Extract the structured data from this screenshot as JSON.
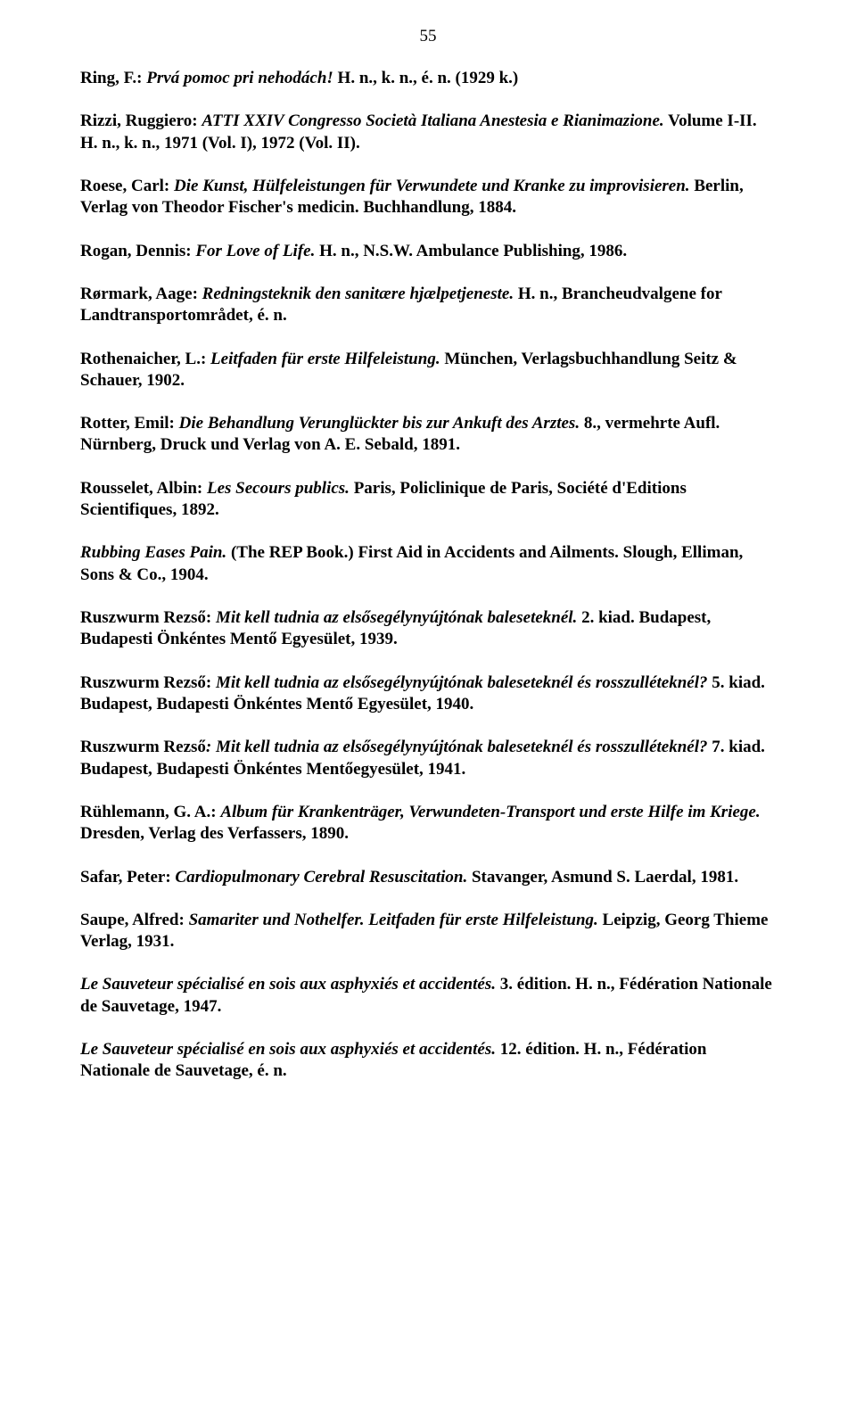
{
  "pageNumber": "55",
  "entries": [
    {
      "runs": [
        {
          "cls": "bold",
          "text": "Ring, F.: "
        },
        {
          "cls": "bold-italic",
          "text": "Prvá pomoc pri nehodách!"
        },
        {
          "cls": "bold",
          "text": " H. n., k. n., é. n. (1929 k.)"
        }
      ]
    },
    {
      "runs": [
        {
          "cls": "bold",
          "text": "Rizzi, Ruggiero: "
        },
        {
          "cls": "bold-italic",
          "text": "ATTI XXIV Congresso Società Italiana Anestesia e Rianimazione."
        },
        {
          "cls": "bold",
          "text": " Volume I-II. H. n., k. n., 1971 (Vol. I), 1972 (Vol. II)."
        }
      ]
    },
    {
      "runs": [
        {
          "cls": "bold",
          "text": "Roese, Carl: "
        },
        {
          "cls": "bold-italic",
          "text": "Die Kunst, Hülfeleistungen für Verwundete und Kranke zu improvisieren."
        },
        {
          "cls": "bold",
          "text": " Berlin, Verlag von Theodor Fischer's medicin. Buchhandlung, 1884."
        }
      ]
    },
    {
      "runs": [
        {
          "cls": "bold",
          "text": "Rogan, Dennis: "
        },
        {
          "cls": "bold-italic",
          "text": "For Love of Life."
        },
        {
          "cls": "bold",
          "text": " H. n., N.S.W. Ambulance Publishing, 1986."
        }
      ]
    },
    {
      "runs": [
        {
          "cls": "bold",
          "text": "Rørmark, Aage: "
        },
        {
          "cls": "bold-italic",
          "text": "Redningsteknik den sanitære hjælpetjeneste."
        },
        {
          "cls": "bold",
          "text": " H. n., Brancheudvalgene for Landtransportområdet, é. n."
        }
      ]
    },
    {
      "runs": [
        {
          "cls": "bold",
          "text": "Rothenaicher, L.: "
        },
        {
          "cls": "bold-italic",
          "text": "Leitfaden für erste Hilfeleistung."
        },
        {
          "cls": "bold",
          "text": " München, Verlagsbuchhandlung Seitz & Schauer, 1902."
        }
      ]
    },
    {
      "runs": [
        {
          "cls": "bold",
          "text": "Rotter, Emil: "
        },
        {
          "cls": "bold-italic",
          "text": "Die Behandlung Verunglückter bis zur Ankuft des Arztes."
        },
        {
          "cls": "bold",
          "text": " 8., vermehrte Aufl. Nürnberg, Druck und Verlag von A. E. Sebald, 1891."
        }
      ]
    },
    {
      "runs": [
        {
          "cls": "bold",
          "text": "Rousselet, Albin: "
        },
        {
          "cls": "bold-italic",
          "text": "Les Secours publics."
        },
        {
          "cls": "bold",
          "text": " Paris, Policlinique de Paris, Société d'Editions Scientifiques, 1892."
        }
      ]
    },
    {
      "runs": [
        {
          "cls": "bold-italic",
          "text": "Rubbing Eases Pain."
        },
        {
          "cls": "bold",
          "text": " (The REP Book.) First Aid in Accidents and Ailments. Slough, Elliman, Sons & Co., 1904."
        }
      ]
    },
    {
      "runs": [
        {
          "cls": "bold",
          "text": "Ruszwurm Rezső: "
        },
        {
          "cls": "bold-italic",
          "text": "Mit kell tudnia az elsősegélynyújtónak baleseteknél."
        },
        {
          "cls": "bold",
          "text": " 2. kiad. Budapest, Budapesti Önkéntes Mentő Egyesület, 1939."
        }
      ]
    },
    {
      "runs": [
        {
          "cls": "bold",
          "text": "Ruszwurm Rezső: "
        },
        {
          "cls": "bold-italic",
          "text": "Mit kell tudnia az elsősegélynyújtónak baleseteknél és rosszulléteknél?"
        },
        {
          "cls": "bold",
          "text": " 5. kiad. Budapest, Budapesti Önkéntes Mentő Egyesület, 1940."
        }
      ]
    },
    {
      "runs": [
        {
          "cls": "bold",
          "text": "Ruszwurm Rezső"
        },
        {
          "cls": "bold-italic",
          "text": ": Mit kell tudnia az elsősegélynyújtónak baleseteknél és rosszulléteknél?"
        },
        {
          "cls": "bold",
          "text": " 7. kiad. Budapest, Budapesti Önkéntes Mentőegyesület, 1941."
        }
      ]
    },
    {
      "runs": [
        {
          "cls": "bold",
          "text": "Rühlemann, G. A.: "
        },
        {
          "cls": "bold-italic",
          "text": "Album für Krankenträger, Verwundeten-Transport und erste Hilfe im Kriege."
        },
        {
          "cls": "bold",
          "text": " Dresden, Verlag des Verfassers, 1890."
        }
      ]
    },
    {
      "runs": [
        {
          "cls": "bold",
          "text": "Safar, Peter: "
        },
        {
          "cls": "bold-italic",
          "text": "Cardiopulmonary Cerebral Resuscitation."
        },
        {
          "cls": "bold",
          "text": " Stavanger, Asmund S. Laerdal, 1981."
        }
      ]
    },
    {
      "runs": [
        {
          "cls": "bold",
          "text": "Saupe, Alfred: "
        },
        {
          "cls": "bold-italic",
          "text": "Samariter und Nothelfer. Leitfaden für erste Hilfeleistung."
        },
        {
          "cls": "bold",
          "text": " Leipzig, Georg Thieme Verlag, 1931."
        }
      ]
    },
    {
      "runs": [
        {
          "cls": "bold-italic",
          "text": "Le Sauveteur spécialisé en sois aux asphyxiés et accidentés."
        },
        {
          "cls": "bold",
          "text": " 3. édition. H. n., Fédération Nationale de Sauvetage, 1947."
        }
      ]
    },
    {
      "runs": [
        {
          "cls": "bold-italic",
          "text": "Le Sauveteur spécialisé en sois aux asphyxiés et accidentés."
        },
        {
          "cls": "bold",
          "text": " 12. édition. H. n., Fédération Nationale de Sauvetage, é. n."
        }
      ]
    }
  ]
}
